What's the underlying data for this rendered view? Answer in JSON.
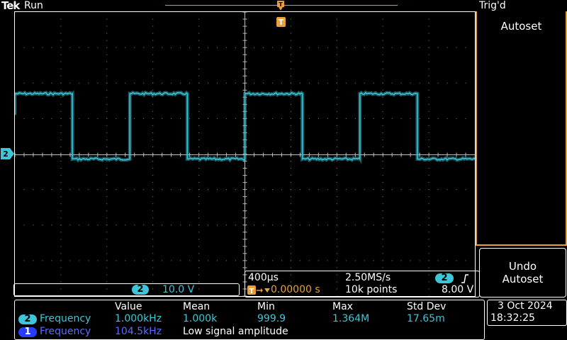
{
  "header": {
    "brand": "Tek",
    "run_state": "Run",
    "trigger_state": "Trig'd",
    "trigger_position_marker": "T"
  },
  "display": {
    "channel_marker": "2",
    "waveform": {
      "channel": "2",
      "color": "#3ec6d8",
      "frequency_hz": 1000,
      "high_level_divisions": 2.0,
      "low_level_divisions": -0.12,
      "time_per_division_us": 400,
      "transitions_divisions": [
        -5.0,
        -3.75,
        -2.5,
        -1.25,
        0.0,
        1.25,
        2.5,
        3.75,
        5.0
      ]
    }
  },
  "side_menu": {
    "autoset_label": "Autoset",
    "undo_line1": "Undo",
    "undo_line2": "Autoset"
  },
  "channel_readout": {
    "channel": "2",
    "scale": "10.0 V"
  },
  "timebase": {
    "time_div": "400µs",
    "sample_rate": "2.50MS/s",
    "trigger_delay": "0.00000 s",
    "record_length": "10k points",
    "trigger_channel": "2",
    "trigger_slope_icon": "rising-edge-icon",
    "trigger_level": "8.00 V"
  },
  "measurements": {
    "headers": [
      "Value",
      "Mean",
      "Min",
      "Max",
      "Std Dev"
    ],
    "rows": [
      {
        "channel": "2",
        "name": "Frequency",
        "value": "1.000kHz",
        "mean": "1.000k",
        "min": "999.9",
        "max": "1.364M",
        "std_dev": "17.65m"
      },
      {
        "channel": "1",
        "name": "Frequency",
        "value": "104.5kHz",
        "note": "Low signal amplitude"
      }
    ]
  },
  "clock": {
    "date": "3 Oct  2024",
    "time": "18:32:25"
  },
  "colors": {
    "ch2": "#3ec6d8",
    "ch1": "#2a3cff",
    "trigger": "#e8a03c"
  }
}
